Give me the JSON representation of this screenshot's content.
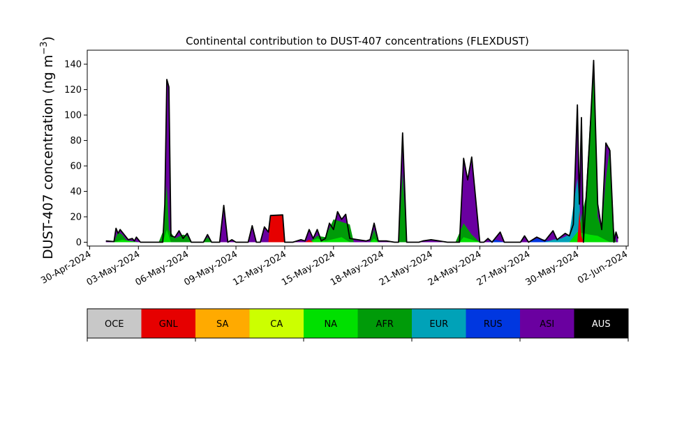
{
  "chart_data": {
    "type": "area",
    "title": "Continental contribution to DUST-407 concentrations (FLEXDUST)",
    "ylabel_main": "DUST-407 concentration (ng m",
    "ylabel_sup": "−3",
    "ylabel_end": ")",
    "ylim": [
      -3,
      151
    ],
    "yticks": [
      0,
      20,
      40,
      60,
      80,
      100,
      120,
      140
    ],
    "xlim": [
      "2024-04-29T20:30",
      "2024-06-02T03:00"
    ],
    "xticks": [
      {
        "date": "2024-04-30",
        "label": "30-Apr-2024"
      },
      {
        "date": "2024-05-03",
        "label": "03-May-2024"
      },
      {
        "date": "2024-05-06",
        "label": "06-May-2024"
      },
      {
        "date": "2024-05-09",
        "label": "09-May-2024"
      },
      {
        "date": "2024-05-12",
        "label": "12-May-2024"
      },
      {
        "date": "2024-05-15",
        "label": "15-May-2024"
      },
      {
        "date": "2024-05-18",
        "label": "18-May-2024"
      },
      {
        "date": "2024-05-21",
        "label": "21-May-2024"
      },
      {
        "date": "2024-05-24",
        "label": "24-May-2024"
      },
      {
        "date": "2024-05-27",
        "label": "27-May-2024"
      },
      {
        "date": "2024-05-30",
        "label": "30-May-2024"
      },
      {
        "date": "2024-06-02",
        "label": "02-Jun-2024"
      }
    ],
    "grid": false,
    "legend_placement": "bottom",
    "legend": [
      {
        "label": "OCE",
        "color": "#c8c8c8",
        "text_color": "#000000"
      },
      {
        "label": "GNL",
        "color": "#e60000",
        "text_color": "#000000"
      },
      {
        "label": "SA",
        "color": "#ffaa00",
        "text_color": "#000000"
      },
      {
        "label": "CA",
        "color": "#ccff00",
        "text_color": "#000000"
      },
      {
        "label": "NA",
        "color": "#00e000",
        "text_color": "#000000"
      },
      {
        "label": "AFR",
        "color": "#009b09",
        "text_color": "#000000"
      },
      {
        "label": "EUR",
        "color": "#00a2b8",
        "text_color": "#000000"
      },
      {
        "label": "RUS",
        "color": "#0037e0",
        "text_color": "#000000"
      },
      {
        "label": "ASI",
        "color": "#6a00a0",
        "text_color": "#000000"
      },
      {
        "label": "AUS",
        "color": "#000000",
        "text_color": "#ffffff"
      }
    ],
    "series": [
      {
        "name": "GNL",
        "color": "#e60000",
        "points": [
          [
            "2024-05-11T00:00",
            0
          ],
          [
            "2024-05-11T03:00",
            21
          ],
          [
            "2024-05-11T21:00",
            21.5
          ],
          [
            "2024-05-12T00:00",
            0
          ],
          [
            "2024-05-13T06:00",
            0
          ],
          [
            "2024-05-13T12:00",
            2
          ],
          [
            "2024-05-13T18:00",
            0
          ],
          [
            "2024-05-30T00:00",
            0
          ],
          [
            "2024-05-30T03:00",
            25
          ],
          [
            "2024-05-30T06:00",
            5
          ],
          [
            "2024-05-30T09:00",
            0
          ]
        ]
      },
      {
        "name": "NA",
        "color": "#00e000",
        "points": [
          [
            "2024-05-01T12:00",
            0
          ],
          [
            "2024-05-02T00:00",
            2
          ],
          [
            "2024-05-03T00:00",
            0
          ],
          [
            "2024-05-04T12:00",
            0
          ],
          [
            "2024-05-04T18:00",
            10
          ],
          [
            "2024-05-05T00:00",
            0
          ],
          [
            "2024-05-13T12:00",
            0
          ],
          [
            "2024-05-14T00:00",
            3
          ],
          [
            "2024-05-14T12:00",
            1
          ],
          [
            "2024-05-15T12:00",
            4
          ],
          [
            "2024-05-16T00:00",
            0
          ],
          [
            "2024-05-17T06:00",
            0
          ],
          [
            "2024-05-17T12:00",
            3
          ],
          [
            "2024-05-17T18:00",
            0
          ],
          [
            "2024-05-22T18:00",
            0
          ],
          [
            "2024-05-23T00:00",
            4
          ],
          [
            "2024-05-23T12:00",
            2
          ],
          [
            "2024-05-24T00:00",
            0
          ],
          [
            "2024-05-29T12:00",
            0
          ],
          [
            "2024-05-30T00:00",
            8
          ],
          [
            "2024-05-30T18:00",
            6
          ],
          [
            "2024-05-31T06:00",
            5
          ],
          [
            "2024-06-01T00:00",
            0
          ]
        ]
      },
      {
        "name": "AFR",
        "color": "#009b09",
        "points": [
          [
            "2024-05-01T12:00",
            0
          ],
          [
            "2024-05-01T18:00",
            8
          ],
          [
            "2024-05-02T00:00",
            6
          ],
          [
            "2024-05-02T06:00",
            2
          ],
          [
            "2024-05-02T09:00",
            0
          ],
          [
            "2024-05-04T06:00",
            0
          ],
          [
            "2024-05-04T12:00",
            8
          ],
          [
            "2024-05-04T18:00",
            45
          ],
          [
            "2024-05-04T21:00",
            10
          ],
          [
            "2024-05-05T06:00",
            3
          ],
          [
            "2024-05-05T18:00",
            6
          ],
          [
            "2024-05-06T00:00",
            5
          ],
          [
            "2024-05-06T06:00",
            0
          ],
          [
            "2024-05-07T00:00",
            0
          ],
          [
            "2024-05-07T06:00",
            4
          ],
          [
            "2024-05-07T12:00",
            0
          ],
          [
            "2024-05-13T12:00",
            0
          ],
          [
            "2024-05-14T00:00",
            5
          ],
          [
            "2024-05-14T12:00",
            4
          ],
          [
            "2024-05-15T00:00",
            18
          ],
          [
            "2024-05-15T12:00",
            16
          ],
          [
            "2024-05-16T00:00",
            14
          ],
          [
            "2024-05-16T06:00",
            0
          ],
          [
            "2024-05-17T06:00",
            0
          ],
          [
            "2024-05-17T12:00",
            10
          ],
          [
            "2024-05-17T18:00",
            0
          ],
          [
            "2024-05-19T00:00",
            0
          ],
          [
            "2024-05-19T06:00",
            55
          ],
          [
            "2024-05-19T12:00",
            0
          ],
          [
            "2024-05-22T12:00",
            0
          ],
          [
            "2024-05-23T00:00",
            15
          ],
          [
            "2024-05-23T12:00",
            6
          ],
          [
            "2024-05-24T00:00",
            0
          ],
          [
            "2024-05-30T00:00",
            0
          ],
          [
            "2024-05-30T06:00",
            20
          ],
          [
            "2024-05-30T12:00",
            35
          ],
          [
            "2024-05-30T18:00",
            90
          ],
          [
            "2024-05-31T00:00",
            130
          ],
          [
            "2024-05-31T06:00",
            20
          ],
          [
            "2024-05-31T12:00",
            10
          ],
          [
            "2024-05-31T18:00",
            50
          ],
          [
            "2024-06-01T00:00",
            75
          ],
          [
            "2024-06-01T06:00",
            10
          ],
          [
            "2024-06-01T09:00",
            0
          ]
        ]
      },
      {
        "name": "EUR",
        "color": "#00a2b8",
        "points": [
          [
            "2024-05-13T12:00",
            0
          ],
          [
            "2024-05-14T00:00",
            2
          ],
          [
            "2024-05-14T12:00",
            0
          ],
          [
            "2024-05-22T12:00",
            0
          ],
          [
            "2024-05-23T00:00",
            6
          ],
          [
            "2024-05-23T12:00",
            2
          ],
          [
            "2024-05-24T00:00",
            0
          ],
          [
            "2024-05-28T00:00",
            0
          ],
          [
            "2024-05-28T12:00",
            2
          ],
          [
            "2024-05-29T00:00",
            3
          ],
          [
            "2024-05-29T12:00",
            6
          ],
          [
            "2024-05-30T00:00",
            50
          ],
          [
            "2024-05-30T06:00",
            10
          ],
          [
            "2024-05-30T12:00",
            0
          ]
        ]
      },
      {
        "name": "RUS",
        "color": "#0037e0",
        "points": [
          [
            "2024-05-24T12:00",
            0
          ],
          [
            "2024-05-25T00:00",
            2
          ],
          [
            "2024-05-25T12:00",
            0
          ],
          [
            "2024-05-27T00:00",
            0
          ],
          [
            "2024-05-27T12:00",
            3
          ],
          [
            "2024-05-28T00:00",
            2
          ],
          [
            "2024-05-28T12:00",
            0
          ]
        ]
      },
      {
        "name": "ASI",
        "color": "#6a00a0",
        "points": [
          [
            "2024-05-01T00:00",
            0
          ],
          [
            "2024-05-01T12:00",
            1
          ],
          [
            "2024-05-02T00:00",
            3
          ],
          [
            "2024-05-03T00:00",
            0
          ],
          [
            "2024-05-04T12:00",
            0
          ],
          [
            "2024-05-04T18:00",
            70
          ],
          [
            "2024-05-05T00:00",
            0
          ],
          [
            "2024-05-05T00:00",
            0
          ],
          [
            "2024-05-05T06:00",
            2
          ],
          [
            "2024-05-05T18:00",
            3
          ],
          [
            "2024-05-06T06:00",
            0
          ],
          [
            "2024-05-08T00:00",
            0
          ],
          [
            "2024-05-08T06:00",
            18
          ],
          [
            "2024-05-08T12:00",
            0
          ],
          [
            "2024-05-09T18:00",
            0
          ],
          [
            "2024-05-10T00:00",
            12
          ],
          [
            "2024-05-10T06:00",
            0
          ],
          [
            "2024-05-10T12:00",
            0
          ],
          [
            "2024-05-10T18:00",
            11
          ],
          [
            "2024-05-11T00:00",
            0
          ],
          [
            "2024-05-14T12:00",
            0
          ],
          [
            "2024-05-14T18:00",
            10
          ],
          [
            "2024-05-15T00:00",
            0
          ],
          [
            "2024-05-22T18:00",
            0
          ],
          [
            "2024-05-23T00:00",
            45
          ],
          [
            "2024-05-23T06:00",
            35
          ],
          [
            "2024-05-23T12:00",
            45
          ],
          [
            "2024-05-24T00:00",
            0
          ],
          [
            "2024-05-25T00:00",
            0
          ],
          [
            "2024-05-25T06:00",
            5
          ],
          [
            "2024-05-25T12:00",
            0
          ],
          [
            "2024-05-29T18:00",
            0
          ],
          [
            "2024-05-30T00:00",
            30
          ],
          [
            "2024-05-30T06:00",
            20
          ],
          [
            "2024-05-30T12:00",
            0
          ]
        ]
      }
    ],
    "total": {
      "name": "AUS",
      "color": "#000000",
      "points": [
        [
          "2024-05-01T00:00",
          1
        ],
        [
          "2024-05-01T12:00",
          0.5
        ],
        [
          "2024-05-01T15:00",
          11
        ],
        [
          "2024-05-01T18:00",
          7
        ],
        [
          "2024-05-01T21:00",
          10
        ],
        [
          "2024-05-02T03:00",
          6
        ],
        [
          "2024-05-02T09:00",
          2
        ],
        [
          "2024-05-02T15:00",
          3
        ],
        [
          "2024-05-02T18:00",
          1
        ],
        [
          "2024-05-02T21:00",
          4
        ],
        [
          "2024-05-03T03:00",
          0
        ],
        [
          "2024-05-04T12:00",
          0
        ],
        [
          "2024-05-04T15:00",
          30
        ],
        [
          "2024-05-04T18:00",
          128
        ],
        [
          "2024-05-04T21:00",
          122
        ],
        [
          "2024-05-05T00:00",
          5
        ],
        [
          "2024-05-05T06:00",
          4
        ],
        [
          "2024-05-05T12:00",
          9
        ],
        [
          "2024-05-05T18:00",
          3
        ],
        [
          "2024-05-06T00:00",
          7
        ],
        [
          "2024-05-06T06:00",
          0
        ],
        [
          "2024-05-07T00:00",
          0
        ],
        [
          "2024-05-07T06:00",
          6
        ],
        [
          "2024-05-07T12:00",
          0
        ],
        [
          "2024-05-08T00:00",
          0
        ],
        [
          "2024-05-08T06:00",
          29
        ],
        [
          "2024-05-08T12:00",
          0
        ],
        [
          "2024-05-08T18:00",
          2
        ],
        [
          "2024-05-09T00:00",
          0
        ],
        [
          "2024-05-09T18:00",
          0
        ],
        [
          "2024-05-10T00:00",
          13
        ],
        [
          "2024-05-10T06:00",
          0
        ],
        [
          "2024-05-10T12:00",
          0
        ],
        [
          "2024-05-10T18:00",
          12
        ],
        [
          "2024-05-11T00:00",
          8
        ],
        [
          "2024-05-11T03:00",
          21
        ],
        [
          "2024-05-11T21:00",
          21.5
        ],
        [
          "2024-05-12T00:00",
          0
        ],
        [
          "2024-05-12T12:00",
          0
        ],
        [
          "2024-05-13T00:00",
          2
        ],
        [
          "2024-05-13T06:00",
          1
        ],
        [
          "2024-05-13T12:00",
          10
        ],
        [
          "2024-05-13T18:00",
          3
        ],
        [
          "2024-05-14T00:00",
          10
        ],
        [
          "2024-05-14T06:00",
          1
        ],
        [
          "2024-05-14T12:00",
          3
        ],
        [
          "2024-05-14T18:00",
          15
        ],
        [
          "2024-05-15T00:00",
          10
        ],
        [
          "2024-05-15T06:00",
          24
        ],
        [
          "2024-05-15T12:00",
          18
        ],
        [
          "2024-05-15T18:00",
          22
        ],
        [
          "2024-05-16T00:00",
          3
        ],
        [
          "2024-05-16T12:00",
          2
        ],
        [
          "2024-05-17T00:00",
          1
        ],
        [
          "2024-05-17T06:00",
          2
        ],
        [
          "2024-05-17T12:00",
          15
        ],
        [
          "2024-05-17T18:00",
          1
        ],
        [
          "2024-05-18T06:00",
          1
        ],
        [
          "2024-05-18T18:00",
          0
        ],
        [
          "2024-05-19T00:00",
          0
        ],
        [
          "2024-05-19T06:00",
          86
        ],
        [
          "2024-05-19T12:00",
          0
        ],
        [
          "2024-05-20T06:00",
          0
        ],
        [
          "2024-05-20T12:00",
          1
        ],
        [
          "2024-05-21T00:00",
          2
        ],
        [
          "2024-05-21T12:00",
          1
        ],
        [
          "2024-05-22T00:00",
          0
        ],
        [
          "2024-05-22T18:00",
          0
        ],
        [
          "2024-05-23T00:00",
          66
        ],
        [
          "2024-05-23T06:00",
          49
        ],
        [
          "2024-05-23T12:00",
          67
        ],
        [
          "2024-05-24T00:00",
          0
        ],
        [
          "2024-05-24T06:00",
          0
        ],
        [
          "2024-05-24T12:00",
          3
        ],
        [
          "2024-05-24T18:00",
          0
        ],
        [
          "2024-05-25T06:00",
          8
        ],
        [
          "2024-05-25T12:00",
          0
        ],
        [
          "2024-05-26T12:00",
          0
        ],
        [
          "2024-05-26T18:00",
          5
        ],
        [
          "2024-05-27T00:00",
          0
        ],
        [
          "2024-05-27T12:00",
          4
        ],
        [
          "2024-05-28T00:00",
          1
        ],
        [
          "2024-05-28T12:00",
          9
        ],
        [
          "2024-05-28T18:00",
          2
        ],
        [
          "2024-05-29T06:00",
          7
        ],
        [
          "2024-05-29T12:00",
          5
        ],
        [
          "2024-05-29T18:00",
          14
        ],
        [
          "2024-05-30T00:00",
          108
        ],
        [
          "2024-05-30T03:00",
          30
        ],
        [
          "2024-05-30T06:00",
          98
        ],
        [
          "2024-05-30T09:00",
          0
        ],
        [
          "2024-05-30T18:00",
          80
        ],
        [
          "2024-05-31T00:00",
          143
        ],
        [
          "2024-05-31T06:00",
          30
        ],
        [
          "2024-05-31T12:00",
          10
        ],
        [
          "2024-05-31T18:00",
          78
        ],
        [
          "2024-06-01T00:00",
          72
        ],
        [
          "2024-06-01T06:00",
          0
        ],
        [
          "2024-06-01T09:00",
          8
        ],
        [
          "2024-06-01T12:00",
          3
        ]
      ]
    }
  }
}
